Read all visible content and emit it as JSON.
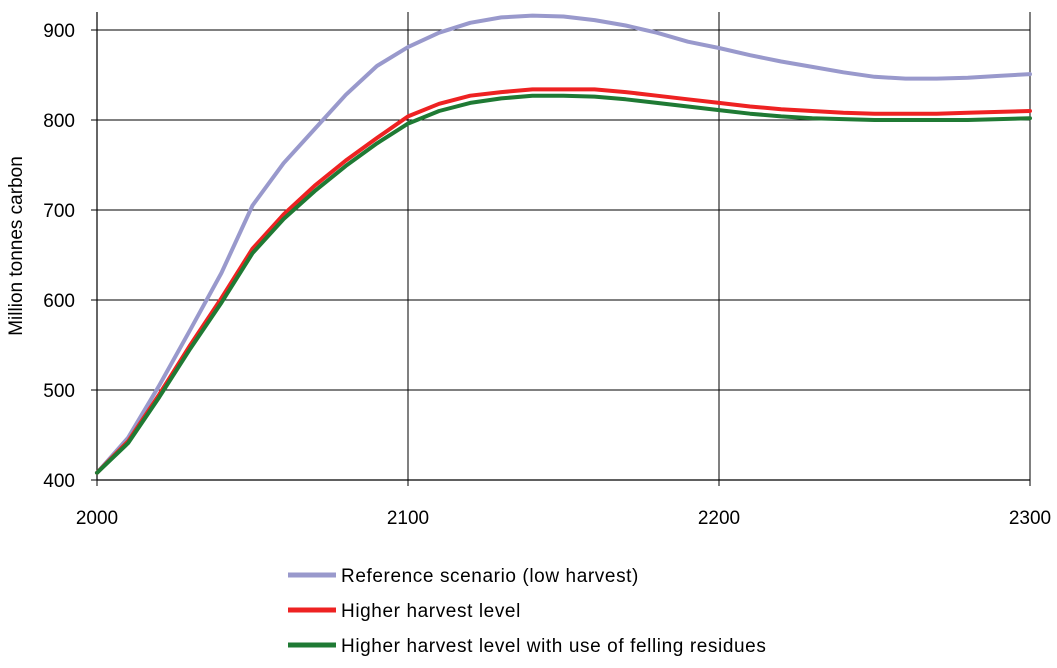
{
  "chart_data": {
    "type": "line",
    "title": "",
    "xlabel": "",
    "ylabel": "Million tonnes carbon",
    "xlim": [
      2000,
      2300
    ],
    "ylim": [
      400,
      920
    ],
    "x_ticks": [
      2000,
      2100,
      2200,
      2300
    ],
    "y_ticks": [
      400,
      500,
      600,
      700,
      800,
      900
    ],
    "grid": true,
    "legend_position": "bottom",
    "x": [
      2000,
      2010,
      2020,
      2030,
      2040,
      2050,
      2060,
      2070,
      2080,
      2090,
      2100,
      2110,
      2120,
      2130,
      2140,
      2150,
      2160,
      2170,
      2180,
      2190,
      2200,
      2210,
      2220,
      2230,
      2240,
      2250,
      2260,
      2270,
      2280,
      2290,
      2300
    ],
    "series": [
      {
        "name": "Reference scenario (low harvest)",
        "color": "#9999cc",
        "values": [
          408,
          447,
          505,
          567,
          630,
          705,
          752,
          790,
          828,
          860,
          881,
          897,
          908,
          914,
          916,
          915,
          911,
          905,
          897,
          887,
          880,
          872,
          865,
          859,
          853,
          848,
          846,
          846,
          847,
          849,
          851
        ]
      },
      {
        "name": "Higher harvest level",
        "color": "#ee2222",
        "values": [
          408,
          443,
          495,
          550,
          602,
          657,
          695,
          727,
          755,
          780,
          804,
          818,
          827,
          831,
          834,
          834,
          834,
          831,
          827,
          823,
          819,
          815,
          812,
          810,
          808,
          807,
          807,
          807,
          808,
          809,
          810
        ]
      },
      {
        "name": "Higher harvest level with use of felling residues",
        "color": "#1f7a34",
        "values": [
          408,
          441,
          492,
          546,
          597,
          652,
          690,
          721,
          749,
          774,
          796,
          810,
          819,
          824,
          827,
          827,
          826,
          823,
          819,
          815,
          811,
          807,
          804,
          802,
          801,
          800,
          800,
          800,
          800,
          801,
          802
        ]
      }
    ]
  }
}
